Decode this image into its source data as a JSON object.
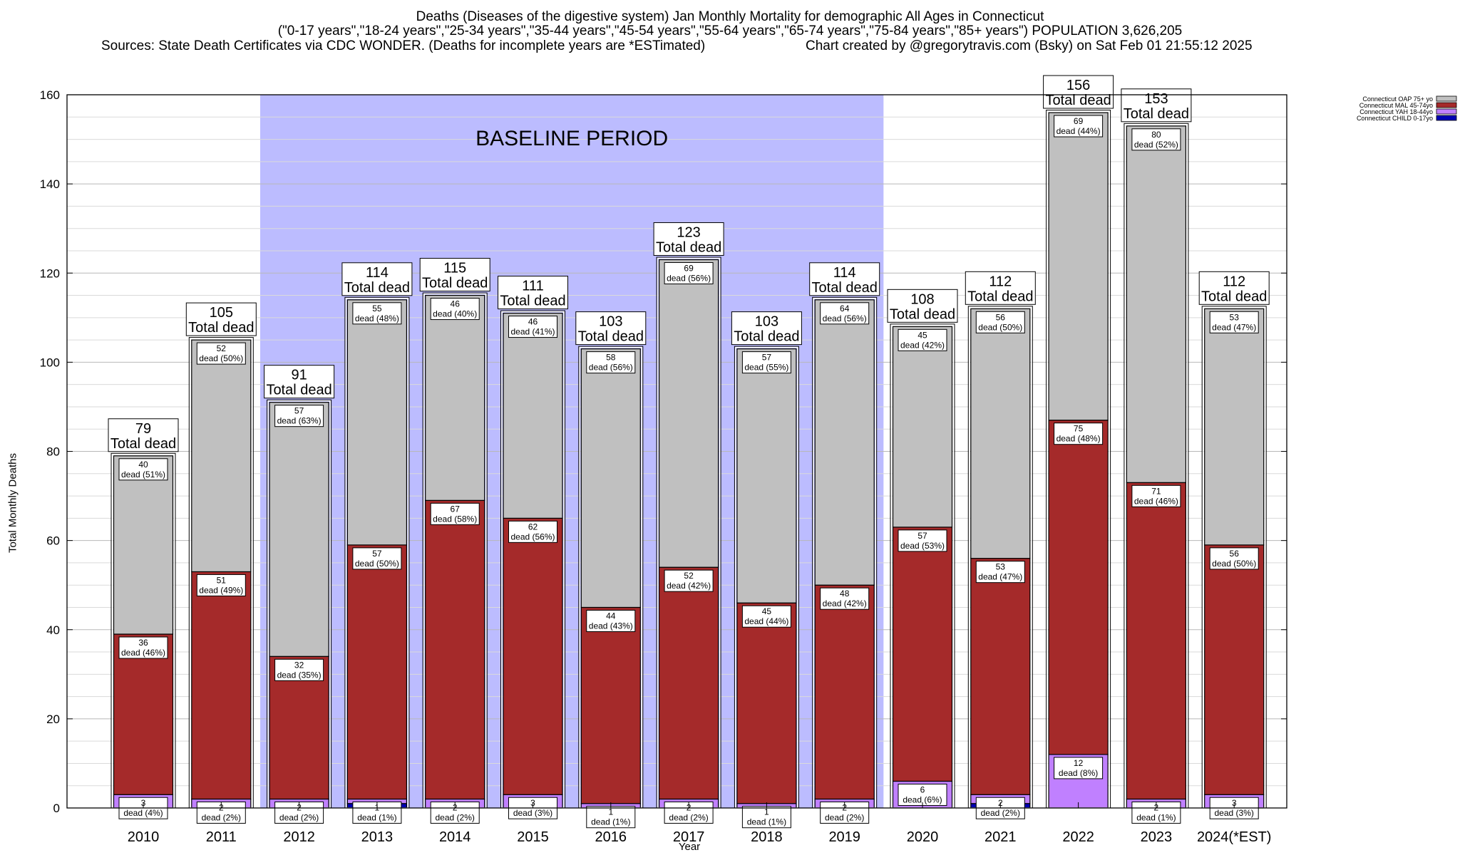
{
  "header": {
    "title_line1": "Deaths (Diseases of the digestive system) Jan Monthly Mortality for demographic All Ages in Connecticut",
    "title_line2": "(\"0-17 years\",\"18-24 years\",\"25-34 years\",\"35-44 years\",\"45-54 years\",\"55-64 years\",\"65-74 years\",\"75-84 years\",\"85+ years\") POPULATION 3,626,205",
    "sources": "Sources: State Death Certificates via CDC WONDER. (Deaths for incomplete years are *ESTimated)",
    "credit": "Chart created by @gregorytravis.com (Bsky) on Sat Feb 01 21:55:12 2025"
  },
  "chart_data": {
    "type": "bar",
    "stacked": true,
    "xlabel": "Year",
    "ylabel": "Total Monthly Deaths",
    "ylim": [
      0,
      160
    ],
    "yticks": [
      0,
      20,
      40,
      60,
      80,
      100,
      120,
      140,
      160
    ],
    "grid": true,
    "legend_position": "top-right",
    "baseline_label": "BASELINE PERIOD",
    "baseline_range": [
      "2012",
      "2019"
    ],
    "total_label_suffix": "Total dead",
    "categories": [
      "2010",
      "2011",
      "2012",
      "2013",
      "2014",
      "2015",
      "2016",
      "2017",
      "2018",
      "2019",
      "2020",
      "2021",
      "2022",
      "2023",
      "2024(*EST)"
    ],
    "totals": [
      79,
      105,
      91,
      114,
      115,
      111,
      103,
      123,
      103,
      114,
      108,
      112,
      156,
      153,
      112
    ],
    "series": [
      {
        "name": "Connecticut CHILD 0-17yo",
        "color": "#0000b4",
        "values": [
          0,
          0,
          0,
          1,
          0,
          0,
          0,
          0,
          0,
          0,
          0,
          1,
          0,
          0,
          0
        ],
        "labels": [
          "",
          "",
          "",
          "",
          "",
          "",
          "",
          "",
          "",
          "",
          "",
          "",
          "",
          "",
          ""
        ]
      },
      {
        "name": "Connecticut YAH 18-44yo",
        "color": "#c080ff",
        "values": [
          3,
          2,
          2,
          1,
          2,
          3,
          1,
          2,
          1,
          2,
          6,
          2,
          12,
          2,
          3
        ],
        "labels": [
          "3|dead (4%)",
          "2|dead (2%)",
          "2|dead (2%)",
          "1|dead (1%)",
          "2|dead (2%)",
          "3|dead (3%)",
          "1|dead (1%)",
          "2|dead (2%)",
          "1|dead (1%)",
          "2|dead (2%)",
          "6|dead (6%)",
          "2|dead (2%)",
          "12|dead (8%)",
          "2|dead (1%)",
          "3|dead (3%)"
        ]
      },
      {
        "name": "Connecticut MAL 45-74yo",
        "color": "#a52a2a",
        "values": [
          36,
          51,
          32,
          57,
          67,
          62,
          44,
          52,
          45,
          48,
          57,
          53,
          75,
          71,
          56
        ],
        "labels": [
          "36|dead (46%)",
          "51|dead (49%)",
          "32|dead (35%)",
          "57|dead (50%)",
          "67|dead (58%)",
          "62|dead (56%)",
          "44|dead (43%)",
          "52|dead (42%)",
          "45|dead (44%)",
          "48|dead (42%)",
          "57|dead (53%)",
          "53|dead (47%)",
          "75|dead (48%)",
          "71|dead (46%)",
          "56|dead (50%)"
        ]
      },
      {
        "name": "Connecticut OAP 75+ yo",
        "color": "#c0c0c0",
        "values": [
          40,
          52,
          57,
          55,
          46,
          46,
          58,
          69,
          57,
          64,
          45,
          56,
          69,
          80,
          53
        ],
        "labels": [
          "40|dead (51%)",
          "52|dead (50%)",
          "57|dead (63%)",
          "55|dead (48%)",
          "46|dead (40%)",
          "46|dead (41%)",
          "58|dead (56%)",
          "69|dead (56%)",
          "57|dead (55%)",
          "64|dead (56%)",
          "45|dead (42%)",
          "56|dead (50%)",
          "69|dead (44%)",
          "80|dead (52%)",
          "53|dead (47%)"
        ]
      }
    ]
  }
}
